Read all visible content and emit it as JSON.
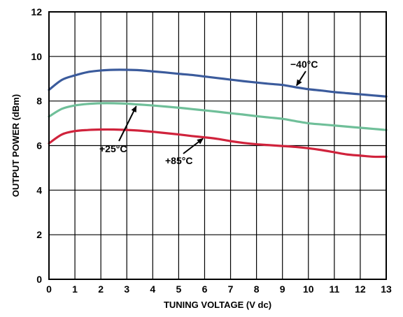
{
  "chart_data": {
    "type": "line",
    "xlabel": "TUNING VOLTAGE (V dc)",
    "ylabel": "OUTPUT POWER (dBm)",
    "xlim": [
      0,
      13
    ],
    "ylim": [
      0,
      12
    ],
    "x_ticks": [
      "0",
      "1",
      "2",
      "3",
      "4",
      "5",
      "6",
      "7",
      "8",
      "9",
      "10",
      "11",
      "12",
      "13"
    ],
    "y_ticks": [
      "0",
      "2",
      "4",
      "6",
      "8",
      "10",
      "12"
    ],
    "grid": true,
    "legend": "none",
    "x": [
      0,
      0.5,
      1,
      1.5,
      2,
      2.5,
      3,
      3.5,
      4,
      4.5,
      5,
      5.5,
      6,
      6.5,
      7,
      7.5,
      8,
      8.5,
      9,
      9.5,
      10,
      10.5,
      11,
      11.5,
      12,
      12.5,
      13
    ],
    "series": [
      {
        "name": "−40°C",
        "color": "#3b5b9c",
        "values": [
          8.5,
          8.95,
          9.15,
          9.3,
          9.37,
          9.4,
          9.4,
          9.38,
          9.33,
          9.28,
          9.22,
          9.17,
          9.1,
          9.03,
          8.96,
          8.89,
          8.83,
          8.77,
          8.72,
          8.62,
          8.53,
          8.47,
          8.4,
          8.35,
          8.3,
          8.25,
          8.2
        ]
      },
      {
        "name": "+25°C",
        "color": "#6fbf99",
        "values": [
          7.3,
          7.65,
          7.8,
          7.87,
          7.9,
          7.9,
          7.88,
          7.84,
          7.8,
          7.75,
          7.7,
          7.64,
          7.58,
          7.52,
          7.45,
          7.39,
          7.32,
          7.26,
          7.2,
          7.1,
          7.0,
          6.95,
          6.9,
          6.85,
          6.8,
          6.75,
          6.7
        ]
      },
      {
        "name": "+85°C",
        "color": "#d0233c",
        "values": [
          6.1,
          6.5,
          6.65,
          6.7,
          6.72,
          6.72,
          6.7,
          6.67,
          6.62,
          6.56,
          6.5,
          6.43,
          6.37,
          6.3,
          6.2,
          6.12,
          6.06,
          6.02,
          5.98,
          5.94,
          5.88,
          5.8,
          5.7,
          5.6,
          5.55,
          5.5,
          5.5
        ]
      }
    ],
    "annotations": [
      {
        "text": "−40°C",
        "series": 0,
        "at_x": 9.5
      },
      {
        "text": "+25°C",
        "series": 1,
        "at_x": 3.4
      },
      {
        "text": "+85°C",
        "series": 2,
        "at_x": 6.0
      }
    ]
  }
}
